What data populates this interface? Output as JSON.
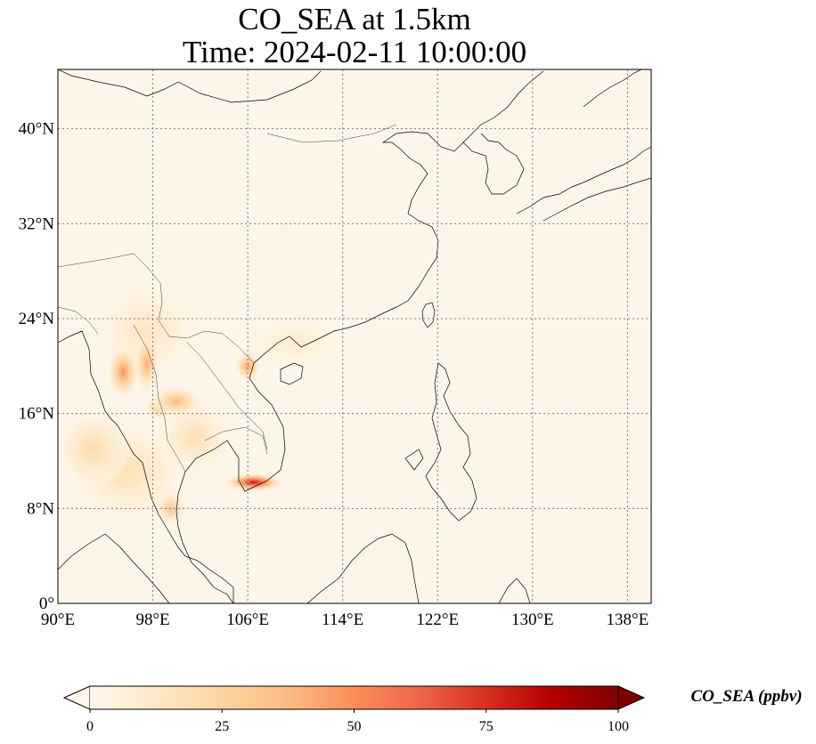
{
  "chart_data": {
    "type": "heatmap",
    "title": "CO_SEA at 1.5km",
    "subtitle": "Time: 2024-02-11 10:00:00",
    "xlim": [
      90,
      140
    ],
    "ylim": [
      0,
      45
    ],
    "x_ticks": [
      90,
      98,
      106,
      114,
      122,
      130,
      138
    ],
    "y_ticks": [
      0,
      8,
      16,
      24,
      32,
      40
    ],
    "x_tick_labels": [
      "90°E",
      "98°E",
      "106°E",
      "114°E",
      "122°E",
      "130°E",
      "138°E"
    ],
    "y_tick_labels": [
      "0°",
      "8°N",
      "16°N",
      "24°N",
      "32°N",
      "40°N"
    ],
    "grid": true,
    "colormap": "OrRd",
    "colorbar": {
      "label": "CO_SEA (ppbv)",
      "range": [
        0,
        100
      ],
      "ticks": [
        0,
        25,
        50,
        75,
        100
      ],
      "tick_labels": [
        "0",
        "25",
        "50",
        "75",
        "100"
      ],
      "extend": "both",
      "stops": [
        "#fff7ec",
        "#fee8c8",
        "#fdd49e",
        "#fdbb84",
        "#fc8d59",
        "#ef6548",
        "#d7301f",
        "#b30000",
        "#7f0000"
      ]
    },
    "background_value": 1,
    "hotspots": [
      {
        "lon": 106.5,
        "lat": 10.2,
        "value": 100,
        "rx": 2.2,
        "ry": 0.7
      },
      {
        "lon": 95.5,
        "lat": 19.5,
        "value": 60,
        "rx": 1.2,
        "ry": 2.0
      },
      {
        "lon": 97.5,
        "lat": 20.2,
        "value": 50,
        "rx": 1.0,
        "ry": 2.2
      },
      {
        "lon": 106.0,
        "lat": 20.0,
        "value": 55,
        "rx": 1.0,
        "ry": 1.2
      },
      {
        "lon": 100.0,
        "lat": 17.0,
        "value": 45,
        "rx": 2.0,
        "ry": 1.2
      },
      {
        "lon": 98.5,
        "lat": 16.5,
        "value": 40,
        "rx": 1.0,
        "ry": 1.0
      },
      {
        "lon": 99.5,
        "lat": 8.0,
        "value": 40,
        "rx": 1.2,
        "ry": 1.2
      },
      {
        "lon": 93.0,
        "lat": 13.0,
        "value": 25,
        "rx": 3.0,
        "ry": 3.0
      },
      {
        "lon": 96.0,
        "lat": 11.0,
        "value": 22,
        "rx": 4.5,
        "ry": 4.0
      },
      {
        "lon": 101.5,
        "lat": 14.0,
        "value": 22,
        "rx": 3.0,
        "ry": 3.0
      },
      {
        "lon": 97.5,
        "lat": 23.0,
        "value": 18,
        "rx": 4.0,
        "ry": 3.5
      },
      {
        "lon": 110.0,
        "lat": 22.0,
        "value": 12,
        "rx": 4.0,
        "ry": 2.0
      }
    ]
  }
}
